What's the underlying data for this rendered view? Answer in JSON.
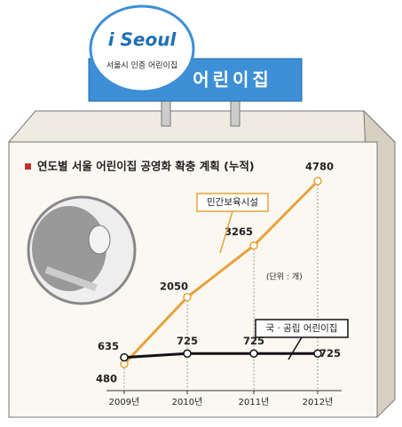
{
  "logo": {
    "brand": "i Seoul",
    "caption": "서울시 인증 어린이집"
  },
  "sign": "어린이집",
  "unit_note": "(단위 : 개)",
  "chart_data": {
    "type": "line",
    "title": "연도별 서울 어린이집 공영화 확충 계획 (누적)",
    "categories": [
      "2009년",
      "2010년",
      "2011년",
      "2012년"
    ],
    "series": [
      {
        "name": "민간보육시설",
        "color": "#e8a23a",
        "values": [
          480,
          2050,
          3265,
          4780
        ]
      },
      {
        "name": "국 · 공립 어린이집",
        "color": "#111111",
        "values": [
          635,
          725,
          725,
          725
        ]
      }
    ]
  }
}
